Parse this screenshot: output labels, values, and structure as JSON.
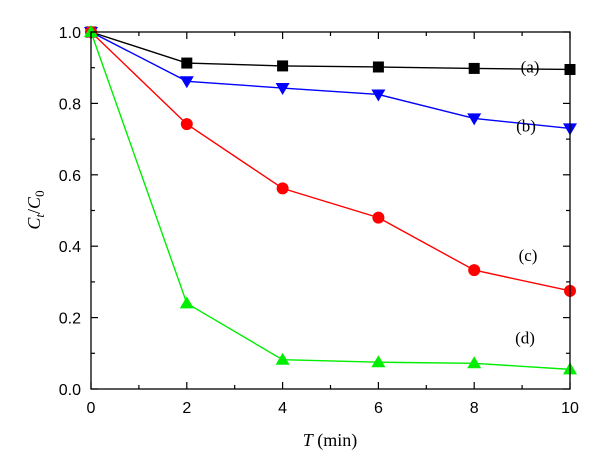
{
  "chart_data": {
    "type": "line",
    "x": [
      0,
      2,
      4,
      6,
      8,
      10
    ],
    "xlim": [
      0,
      10
    ],
    "ylim": [
      0,
      1.0
    ],
    "xticks": [
      0,
      2,
      4,
      6,
      8,
      10
    ],
    "yticks": [
      0.0,
      0.2,
      0.4,
      0.6,
      0.8,
      1.0
    ],
    "xtick_labels": [
      "0",
      "2",
      "4",
      "6",
      "8",
      "10"
    ],
    "ytick_labels": [
      "0.0",
      "0.2",
      "0.4",
      "0.6",
      "0.8",
      "1.0"
    ],
    "xlabel": {
      "var": "T",
      "unit": " (min)"
    },
    "ylabel": {
      "num": "C",
      "num_sub": "t",
      "sep": "/",
      "den": "C",
      "den_sub": "0"
    },
    "grid": false,
    "series": [
      {
        "label": "(a)",
        "color": "#000000",
        "marker": "square",
        "values": [
          1.0,
          0.913,
          0.905,
          0.902,
          0.898,
          0.895
        ]
      },
      {
        "label": "(b)",
        "color": "#0000ff",
        "marker": "triangle-down",
        "values": [
          1.0,
          0.862,
          0.843,
          0.825,
          0.758,
          0.73
        ]
      },
      {
        "label": "(c)",
        "color": "#ff0000",
        "marker": "circle",
        "values": [
          1.0,
          0.742,
          0.562,
          0.48,
          0.333,
          0.275
        ]
      },
      {
        "label": "(d)",
        "color": "#00ee00",
        "marker": "triangle-up",
        "values": [
          1.0,
          0.24,
          0.082,
          0.075,
          0.072,
          0.055
        ]
      }
    ]
  }
}
